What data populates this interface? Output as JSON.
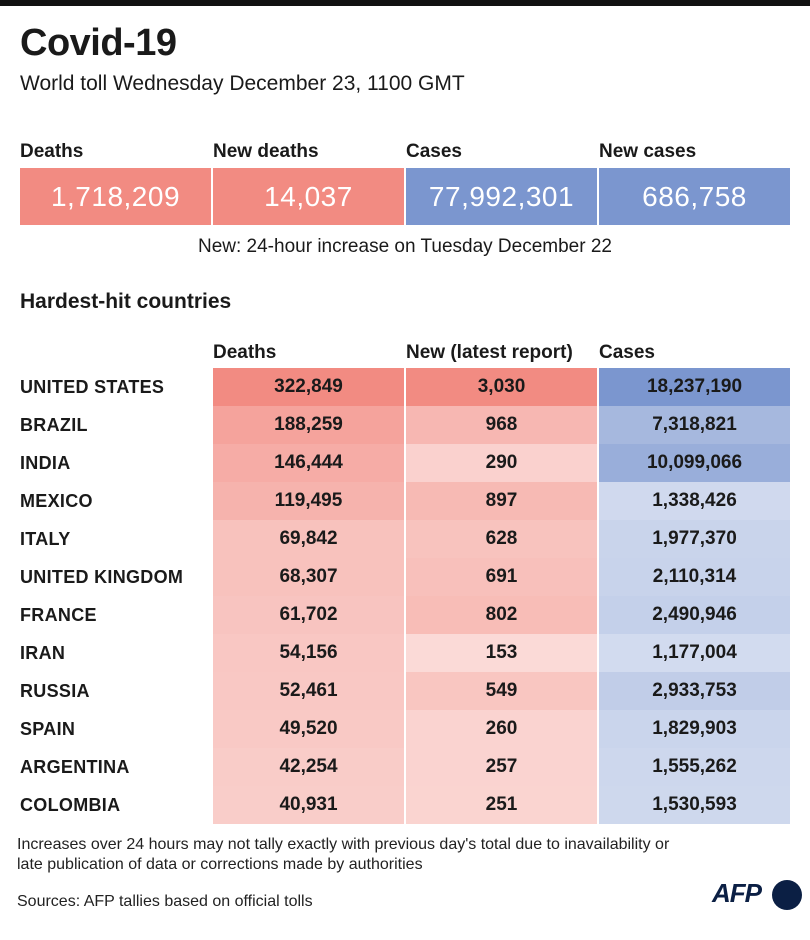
{
  "header": {
    "title": "Covid-19",
    "subtitle": "World toll Wednesday December 23, 1100 GMT"
  },
  "kpis": [
    {
      "label": "Deaths",
      "value": "1,718,209",
      "color": "#f28b82"
    },
    {
      "label": "New deaths",
      "value": "14,037",
      "color": "#f28b82"
    },
    {
      "label": "Cases",
      "value": "77,992,301",
      "color": "#7b96cf"
    },
    {
      "label": "New cases",
      "value": "686,758",
      "color": "#7b96cf"
    }
  ],
  "kpi_note": "New: 24-hour increase on Tuesday December 22",
  "section_title": "Hardest-hit countries",
  "chart_data": {
    "type": "table",
    "columns": [
      "Deaths",
      "New (latest report)",
      "Cases"
    ],
    "rows": [
      {
        "country": "UNITED STATES",
        "deaths": "322,849",
        "new": "3,030",
        "cases": "18,237,190"
      },
      {
        "country": "BRAZIL",
        "deaths": "188,259",
        "new": "968",
        "cases": "7,318,821"
      },
      {
        "country": "INDIA",
        "deaths": "146,444",
        "new": "290",
        "cases": "10,099,066"
      },
      {
        "country": "MEXICO",
        "deaths": "119,495",
        "new": "897",
        "cases": "1,338,426"
      },
      {
        "country": "ITALY",
        "deaths": "69,842",
        "new": "628",
        "cases": "1,977,370"
      },
      {
        "country": "UNITED KINGDOM",
        "deaths": "68,307",
        "new": "691",
        "cases": "2,110,314"
      },
      {
        "country": "FRANCE",
        "deaths": "61,702",
        "new": "802",
        "cases": "2,490,946"
      },
      {
        "country": "IRAN",
        "deaths": "54,156",
        "new": "153",
        "cases": "1,177,004"
      },
      {
        "country": "RUSSIA",
        "deaths": "52,461",
        "new": "549",
        "cases": "2,933,753"
      },
      {
        "country": "SPAIN",
        "deaths": "49,520",
        "new": "260",
        "cases": "1,829,903"
      },
      {
        "country": "ARGENTINA",
        "deaths": "42,254",
        "new": "257",
        "cases": "1,555,262"
      },
      {
        "country": "COLOMBIA",
        "deaths": "40,931",
        "new": "251",
        "cases": "1,530,593"
      }
    ],
    "shading": {
      "deaths_color": "#f28b82",
      "new_color": "#f28b82",
      "cases_color": "#7b96cf"
    }
  },
  "footnote": "Increases over 24 hours may not tally exactly with previous day's total due to inavailability or late publication of data or corrections made by authorities",
  "sources": "Sources: AFP tallies based on official tolls",
  "logo": "AFP"
}
